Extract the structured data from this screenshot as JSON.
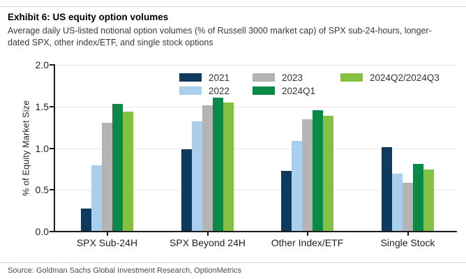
{
  "header": {
    "title": "Exhibit 6: US equity option volumes",
    "subtitle": "Average daily US-listed notional option volumes (% of Russell 3000 market cap) of SPX sub-24-hours, longer-dated SPX, other index/ETF, and single stock options"
  },
  "chart_data": {
    "type": "bar",
    "title": "Exhibit 6: US equity option volumes",
    "xlabel": "",
    "ylabel": "% of Equity Market Size",
    "ylim": [
      0.0,
      2.0
    ],
    "ytick_labels": [
      "0.0",
      "0.5",
      "1.0",
      "1.5",
      "2.0"
    ],
    "grid": "horizontal",
    "legend_position": "top-inside",
    "categories": [
      "SPX Sub-24H",
      "SPX Beyond 24H",
      "Other Index/ETF",
      "Single Stock"
    ],
    "series": [
      {
        "name": "2021",
        "color": "#0E3A5F",
        "values": [
          0.27,
          0.98,
          0.72,
          1.0
        ]
      },
      {
        "name": "2022",
        "color": "#A9CFEC",
        "values": [
          0.79,
          1.31,
          1.08,
          0.69
        ]
      },
      {
        "name": "2023",
        "color": "#B4B4B4",
        "values": [
          1.3,
          1.51,
          1.34,
          0.58
        ]
      },
      {
        "name": "2024Q1",
        "color": "#0B8A47",
        "values": [
          1.52,
          1.6,
          1.45,
          0.8
        ]
      },
      {
        "name": "2024Q2/2024Q3",
        "color": "#84C043",
        "values": [
          1.43,
          1.54,
          1.38,
          0.74
        ]
      }
    ]
  },
  "footer": {
    "source": "Source: Goldman Sachs Global Investment Research, OptionMetrics"
  }
}
